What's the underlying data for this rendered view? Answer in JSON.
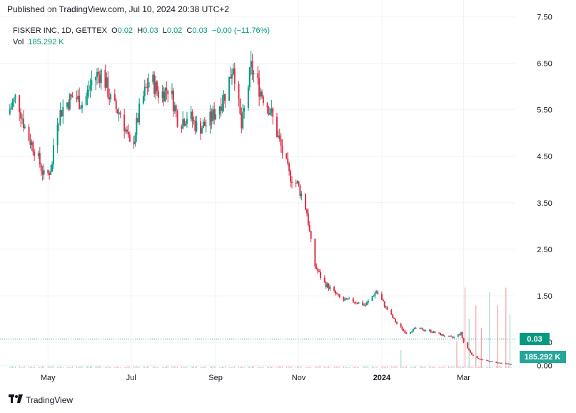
{
  "published": "Published on TradingView.com, Jul 10, 2024 20:38 UTC+2",
  "legend": {
    "symbol": "FISKER INC, 1D, GETTEX",
    "o_label": "O",
    "o": "0.02",
    "h_label": "H",
    "h": "0.03",
    "l_label": "L",
    "l": "0.02",
    "c_label": "C",
    "c": "0.03",
    "change": "−0.00 (−11.76%)",
    "vol_label": "Vol",
    "vol": "185.292 K"
  },
  "brand": {
    "name": "TradingView"
  },
  "colors": {
    "up": "#089981",
    "down": "#e0314a",
    "grid": "#f0f3fa",
    "axis_text": "#131722"
  },
  "chart_data": {
    "type": "candlestick",
    "y_ticks": [
      "7.50",
      "6.50",
      "5.50",
      "4.50",
      "3.50",
      "2.50",
      "1.50",
      "0.50",
      "0.00"
    ],
    "y_tick_values": [
      7.5,
      6.5,
      5.5,
      4.5,
      3.5,
      2.5,
      1.5,
      0.5,
      0.0
    ],
    "ylim": [
      -0.05,
      7.55
    ],
    "x_labels": [
      "May",
      "Jul",
      "Sep",
      "Nov",
      "2024",
      "Mar"
    ],
    "x_label_dates": [
      "2023-05-01",
      "2023-07-01",
      "2023-09-01",
      "2023-11-01",
      "2024-01-01",
      "2024-03-01"
    ],
    "xlim": [
      "2023-04-01",
      "2024-04-08"
    ],
    "last_price_label": "0.03",
    "last_price": 0.03,
    "volume_label": "185.292 K",
    "price_path": [
      [
        "2023-04-01",
        5.4
      ],
      [
        "2023-04-08",
        5.8
      ],
      [
        "2023-04-15",
        5.0
      ],
      [
        "2023-04-22",
        4.6
      ],
      [
        "2023-04-29",
        4.0
      ],
      [
        "2023-05-04",
        4.3
      ],
      [
        "2023-05-06",
        5.2
      ],
      [
        "2023-05-13",
        5.6
      ],
      [
        "2023-05-20",
        5.8
      ],
      [
        "2023-05-27",
        5.6
      ],
      [
        "2023-06-03",
        6.2
      ],
      [
        "2023-06-10",
        6.3
      ],
      [
        "2023-06-17",
        5.6
      ],
      [
        "2023-06-24",
        5.4
      ],
      [
        "2023-07-01",
        4.6
      ],
      [
        "2023-07-08",
        5.6
      ],
      [
        "2023-07-15",
        6.2
      ],
      [
        "2023-07-22",
        5.8
      ],
      [
        "2023-07-29",
        6.0
      ],
      [
        "2023-08-05",
        5.2
      ],
      [
        "2023-08-12",
        5.4
      ],
      [
        "2023-08-19",
        5.1
      ],
      [
        "2023-08-26",
        5.2
      ],
      [
        "2023-09-02",
        5.5
      ],
      [
        "2023-09-09",
        5.9
      ],
      [
        "2023-09-14",
        6.5
      ],
      [
        "2023-09-20",
        5.1
      ],
      [
        "2023-09-27",
        6.4
      ],
      [
        "2023-10-04",
        5.9
      ],
      [
        "2023-10-11",
        5.5
      ],
      [
        "2023-10-18",
        4.8
      ],
      [
        "2023-10-25",
        4.1
      ],
      [
        "2023-10-31",
        3.9
      ],
      [
        "2023-11-04",
        3.6
      ],
      [
        "2023-11-07",
        3.3
      ],
      [
        "2023-11-12",
        2.2
      ],
      [
        "2023-11-19",
        1.8
      ],
      [
        "2023-11-26",
        1.6
      ],
      [
        "2023-12-03",
        1.4
      ],
      [
        "2023-12-10",
        1.4
      ],
      [
        "2023-12-20",
        1.3
      ],
      [
        "2023-12-28",
        1.6
      ],
      [
        "2024-01-05",
        1.2
      ],
      [
        "2024-01-12",
        0.9
      ],
      [
        "2024-01-19",
        0.7
      ],
      [
        "2024-01-26",
        0.8
      ],
      [
        "2024-02-05",
        0.75
      ],
      [
        "2024-02-15",
        0.65
      ],
      [
        "2024-02-22",
        0.6
      ],
      [
        "2024-02-28",
        0.7
      ],
      [
        "2024-03-01",
        0.5
      ],
      [
        "2024-03-08",
        0.2
      ],
      [
        "2024-03-15",
        0.12
      ],
      [
        "2024-03-22",
        0.08
      ],
      [
        "2024-03-29",
        0.05
      ],
      [
        "2024-04-05",
        0.03
      ]
    ],
    "volume_spikes": [
      [
        "2024-01-15",
        0.2
      ],
      [
        "2024-02-25",
        0.3
      ],
      [
        "2024-03-02",
        0.9
      ],
      [
        "2024-03-05",
        0.55
      ],
      [
        "2024-03-10",
        0.7
      ],
      [
        "2024-03-14",
        0.45
      ],
      [
        "2024-03-20",
        0.85
      ],
      [
        "2024-03-26",
        0.7
      ],
      [
        "2024-04-01",
        0.9
      ],
      [
        "2024-04-04",
        0.6
      ]
    ]
  }
}
